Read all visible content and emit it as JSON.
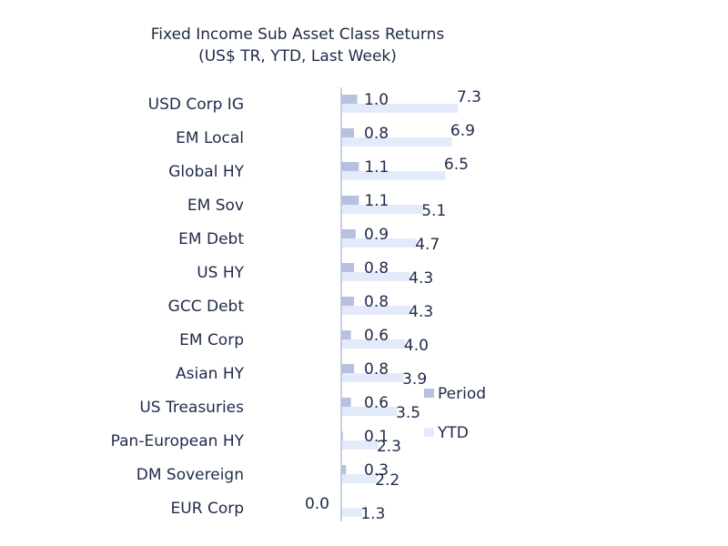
{
  "chart_data": {
    "type": "bar",
    "orientation": "horizontal",
    "title": "Fixed Income Sub Asset Class Returns",
    "subtitle": "(US$ TR, YTD, Last Week)",
    "categories": [
      "USD Corp IG",
      "EM Local",
      "Global HY",
      "EM Sov",
      "EM Debt",
      "US HY",
      "GCC Debt",
      "EM Corp",
      "Asian HY",
      "US Treasuries",
      "Pan-European HY",
      "DM Sovereign",
      "EUR Corp"
    ],
    "series": [
      {
        "name": "Period",
        "color": "#b7c0dc",
        "values": [
          1.0,
          0.8,
          1.1,
          1.1,
          0.9,
          0.8,
          0.8,
          0.6,
          0.8,
          0.6,
          0.1,
          0.3,
          0.0
        ]
      },
      {
        "name": "YTD",
        "color": "#e3ebfb",
        "values": [
          7.3,
          6.9,
          6.5,
          5.1,
          4.7,
          4.3,
          4.3,
          4.0,
          3.9,
          3.5,
          2.3,
          2.2,
          1.3
        ]
      }
    ],
    "xlim": [
      0,
      8
    ],
    "legend_position": "right",
    "axis_color": "#b7c0dc"
  }
}
